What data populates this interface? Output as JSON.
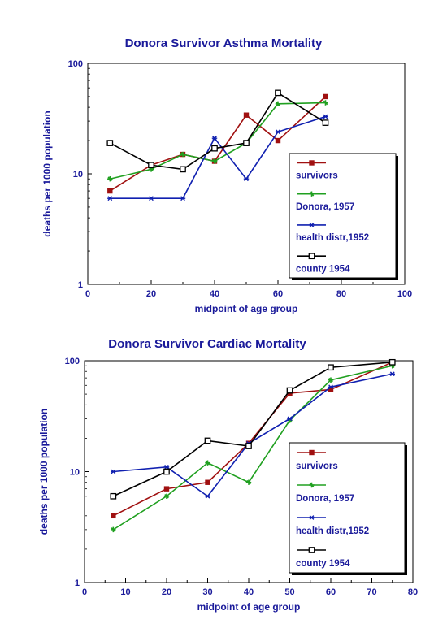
{
  "chart_data": [
    {
      "type": "line",
      "title": "Donora Survivor Asthma Mortality",
      "xlabel": "midpoint of age group",
      "ylabel": "deaths per 1000 population",
      "xlim": [
        0,
        100
      ],
      "ylim": [
        1,
        100
      ],
      "y_scale": "log",
      "x_ticks": [
        "0",
        "20",
        "40",
        "60",
        "80",
        "100"
      ],
      "y_ticks": [
        "1",
        "10",
        "100"
      ],
      "legend_position": "right",
      "series": [
        {
          "name": "survivors",
          "color": "#a01010",
          "marker": "square-filled",
          "x": [
            7,
            20,
            30,
            40,
            50,
            60,
            75
          ],
          "values": [
            7,
            12,
            15,
            13,
            34,
            20,
            50
          ]
        },
        {
          "name": "Donora, 1957",
          "color": "#20a020",
          "marker": "star",
          "x": [
            7,
            20,
            30,
            40,
            50,
            60,
            75
          ],
          "values": [
            9,
            11,
            15,
            13,
            19,
            43,
            44
          ]
        },
        {
          "name": "health distr,1952",
          "color": "#1020b0",
          "marker": "asterisk",
          "x": [
            7,
            20,
            30,
            40,
            50,
            60,
            75
          ],
          "values": [
            6,
            6,
            6,
            21,
            9,
            24,
            33
          ]
        },
        {
          "name": "county 1954",
          "color": "#000000",
          "marker": "square-open",
          "x": [
            7,
            20,
            30,
            40,
            50,
            60,
            75
          ],
          "values": [
            19,
            12,
            11,
            17,
            19,
            54,
            29
          ]
        }
      ]
    },
    {
      "type": "line",
      "title": "Donora Survivor Cardiac Mortality",
      "xlabel": "midpoint of age group",
      "ylabel": "deaths per 1000 population",
      "xlim": [
        0,
        80
      ],
      "ylim": [
        1,
        100
      ],
      "y_scale": "log",
      "x_ticks": [
        "0",
        "10",
        "20",
        "30",
        "40",
        "50",
        "60",
        "70",
        "80"
      ],
      "y_ticks": [
        "1",
        "10",
        "100"
      ],
      "legend_position": "right",
      "series": [
        {
          "name": "survivors",
          "color": "#a01010",
          "marker": "square-filled",
          "x": [
            7,
            20,
            30,
            40,
            50,
            60,
            75
          ],
          "values": [
            4,
            7,
            8,
            18,
            51,
            55,
            97
          ]
        },
        {
          "name": "Donora, 1957",
          "color": "#20a020",
          "marker": "star",
          "x": [
            7,
            20,
            30,
            40,
            50,
            60,
            75
          ],
          "values": [
            3,
            6,
            12,
            8,
            29,
            67,
            90
          ]
        },
        {
          "name": "health distr,1952",
          "color": "#1020b0",
          "marker": "asterisk",
          "x": [
            7,
            20,
            30,
            40,
            50,
            60,
            75
          ],
          "values": [
            10,
            11,
            6,
            18,
            30,
            58,
            76
          ]
        },
        {
          "name": "county 1954",
          "color": "#000000",
          "marker": "square-open",
          "x": [
            7,
            20,
            30,
            40,
            50,
            60,
            75
          ],
          "values": [
            6,
            10,
            19,
            17,
            54,
            87,
            97
          ]
        }
      ]
    }
  ]
}
